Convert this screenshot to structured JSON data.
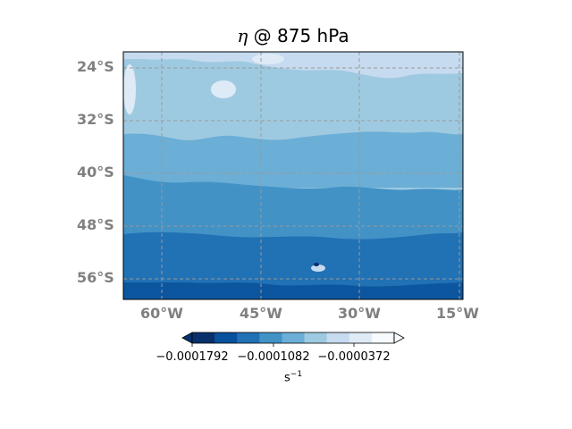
{
  "title": {
    "symbol": "η",
    "rest": " @ 875 hPa"
  },
  "lat_labels": [
    "24°S",
    "32°S",
    "40°S",
    "48°S",
    "56°S"
  ],
  "lon_labels": [
    "60°W",
    "45°W",
    "30°W",
    "15°W"
  ],
  "colorbar": {
    "ticks": [
      "−0.0001792",
      "−0.0001082",
      "−0.0000372"
    ],
    "unit_base": "s",
    "unit_exp": "−1",
    "colors": [
      "#08306b",
      "#08519c",
      "#2171b5",
      "#4292c6",
      "#6baed6",
      "#9ecae1",
      "#c6dbef",
      "#deebf7",
      "#f7fbff"
    ],
    "extend": "both"
  },
  "chart_data": {
    "type": "filled-contour-map",
    "variable": "η",
    "level": "875 hPa",
    "units": "s^-1",
    "lat_range": [
      "20°S",
      "58°S"
    ],
    "lon_range": [
      "64°W",
      "14°W"
    ],
    "colorbar_ticks": [
      -0.0001792,
      -0.0001082,
      -3.72e-05
    ],
    "pattern": "values decrease (more negative, darker blue) toward the south; lightest values in the north"
  }
}
